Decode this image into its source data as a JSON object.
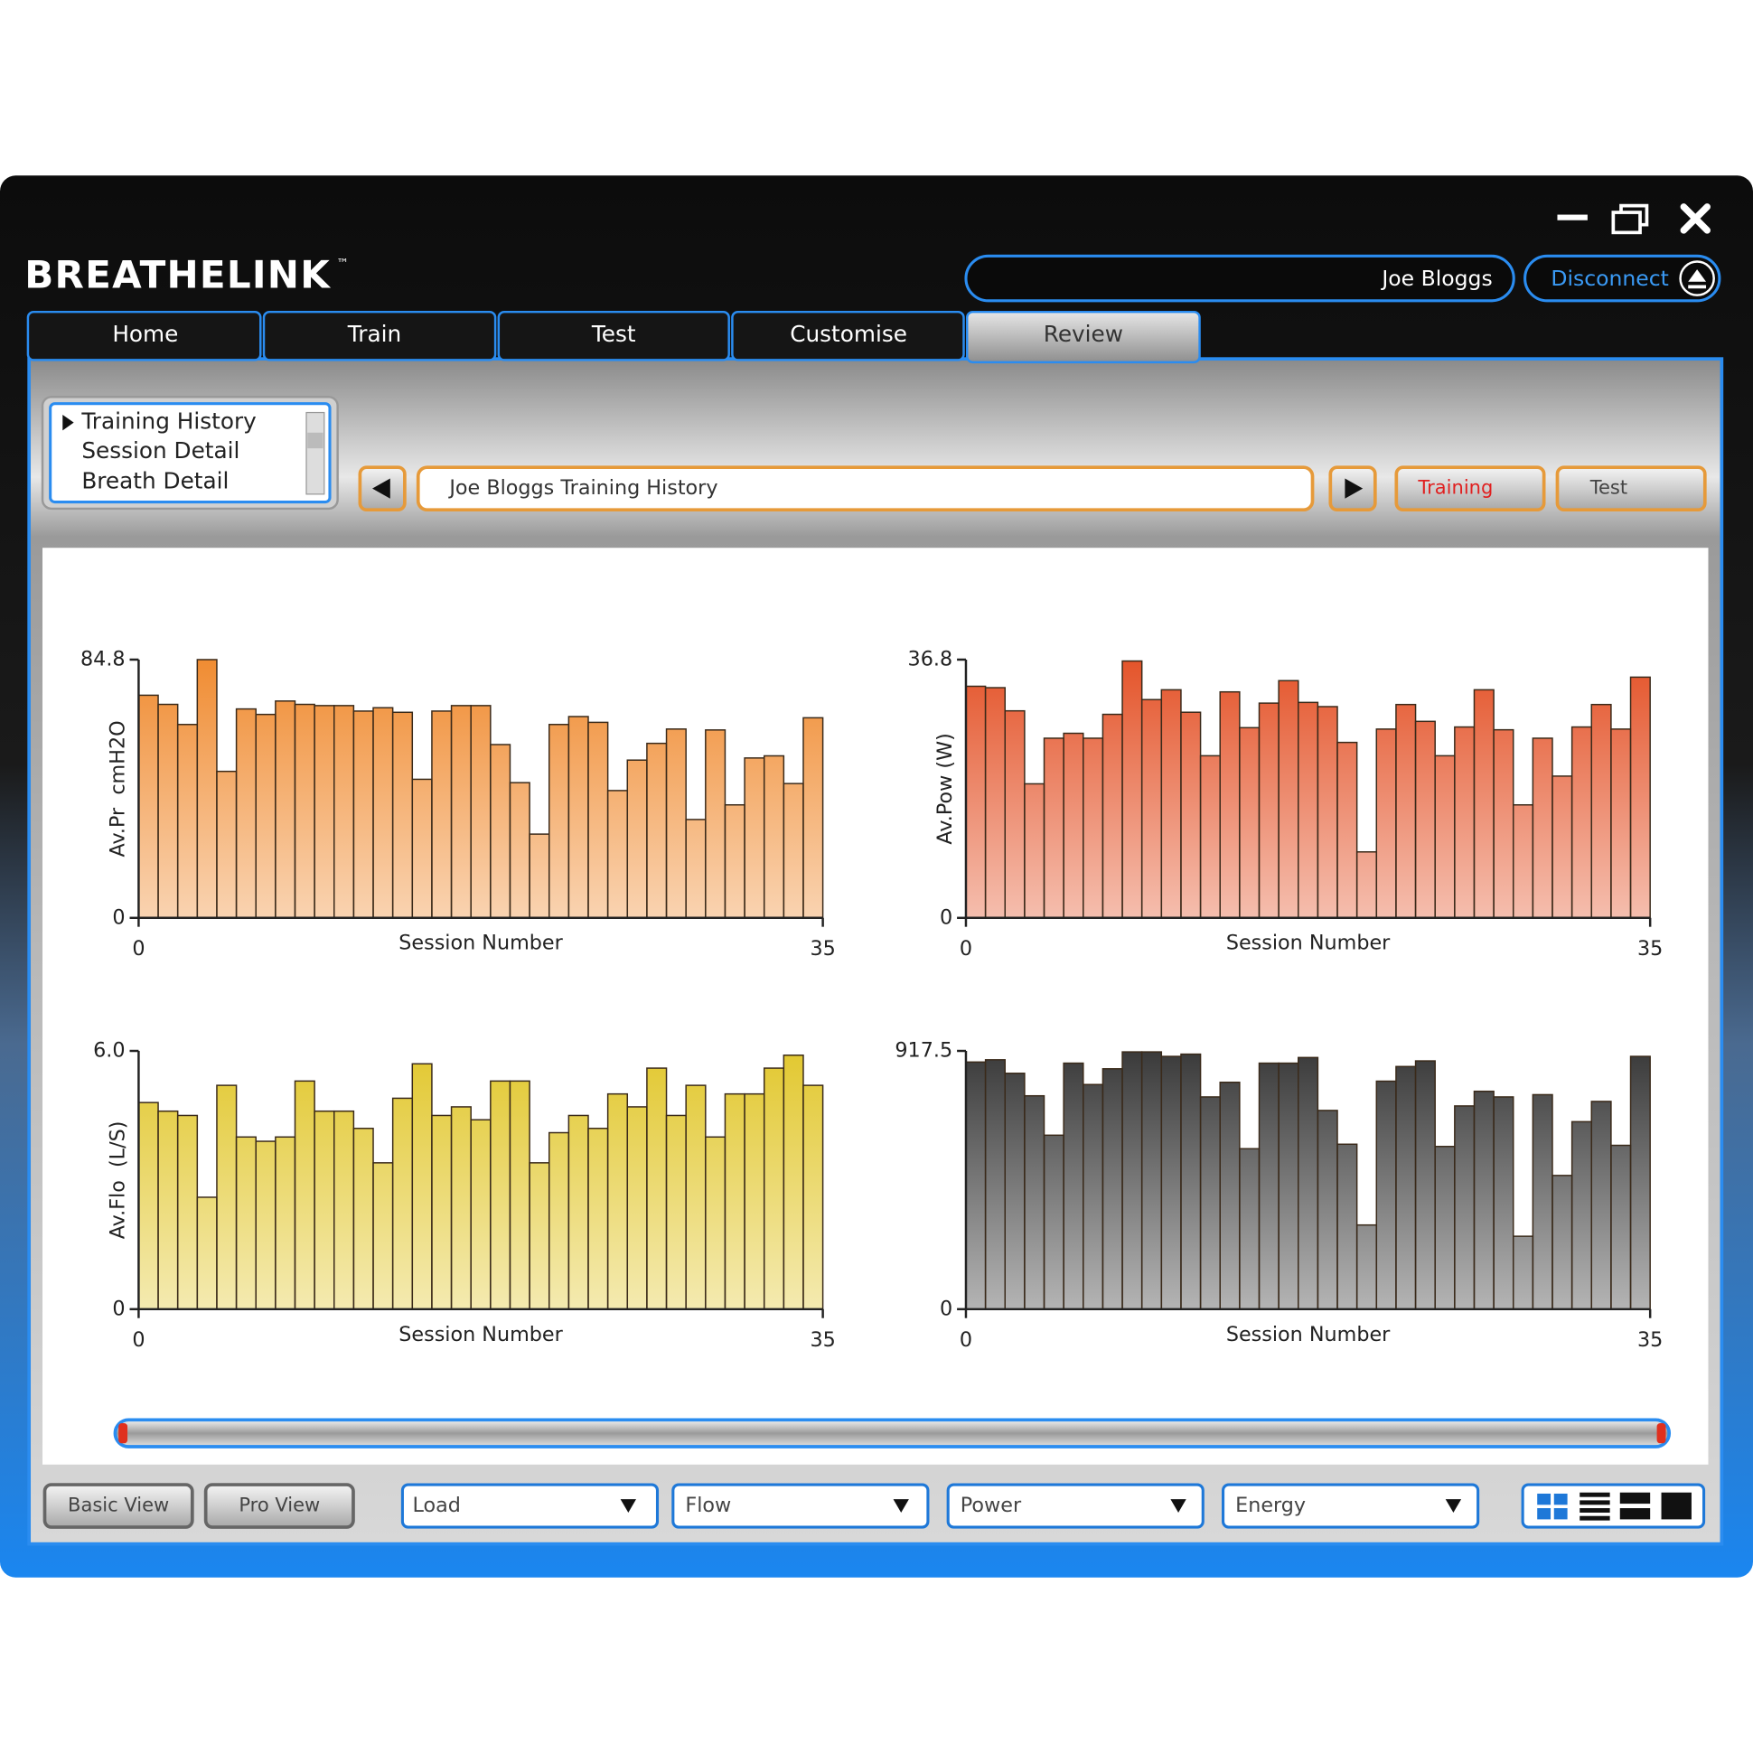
{
  "window": {
    "logo": "BREATHELINK",
    "trademark": "™",
    "user": "Joe Bloggs",
    "disconnect": "Disconnect"
  },
  "tabs": [
    "Home",
    "Train",
    "Test",
    "Customise",
    "Review"
  ],
  "views": [
    "Training History",
    "Session Detail",
    "Breath Detail"
  ],
  "history_title": "Joe Bloggs Training History",
  "mode_buttons": [
    "Training",
    "Test"
  ],
  "view_buttons": [
    "Basic View",
    "Pro View"
  ],
  "dropdowns": [
    "Load",
    "Flow",
    "Power",
    "Energy"
  ],
  "chart_data": [
    {
      "type": "bar",
      "x_label": "Session Number",
      "y_label": "Av.Pr  cmH2O",
      "color": "#f08c32",
      "x": [
        1,
        2,
        3,
        4,
        5,
        6,
        7,
        8,
        9,
        10,
        11,
        12,
        13,
        14,
        15,
        16,
        17,
        18,
        19,
        20,
        21,
        22,
        23,
        24,
        25,
        26,
        27,
        28,
        29,
        30,
        31,
        32,
        33,
        34,
        35
      ],
      "values": [
        73.1,
        70.1,
        63.5,
        84.8,
        48.1,
        68.6,
        66.8,
        71.2,
        70.1,
        69.7,
        69.7,
        67.9,
        69.0,
        67.5,
        45.5,
        67.9,
        69.7,
        69.7,
        56.9,
        44.4,
        27.5,
        63.5,
        66.1,
        64.2,
        41.8,
        51.8,
        57.3,
        62.0,
        32.3,
        61.7,
        37.1,
        52.5,
        53.2,
        44.1,
        65.7
      ],
      "xlim": [
        0,
        35
      ],
      "ylim": [
        0,
        84.8
      ],
      "xticks": [
        0,
        35
      ],
      "yticks": [
        0,
        84.8
      ]
    },
    {
      "type": "bar",
      "x_label": "Session Number",
      "y_label": "Av.Pow (W)",
      "color": "#e4542a",
      "x": [
        1,
        2,
        3,
        4,
        5,
        6,
        7,
        8,
        9,
        10,
        11,
        12,
        13,
        14,
        15,
        16,
        17,
        18,
        19,
        20,
        21,
        22,
        23,
        24,
        25,
        26,
        27,
        28,
        29,
        30,
        31,
        32,
        33,
        34,
        35
      ],
      "values": [
        33.0,
        32.8,
        29.5,
        19.1,
        25.6,
        26.3,
        25.6,
        29.0,
        36.6,
        31.1,
        32.5,
        29.3,
        23.1,
        32.2,
        27.1,
        30.6,
        33.8,
        30.7,
        30.1,
        25.0,
        9.4,
        26.9,
        30.4,
        28.0,
        23.1,
        27.2,
        32.5,
        26.8,
        16.1,
        25.6,
        20.2,
        27.2,
        30.4,
        26.9,
        34.3
      ],
      "xlim": [
        0,
        35
      ],
      "ylim": [
        0,
        36.8
      ],
      "xticks": [
        0,
        35
      ],
      "yticks": [
        0,
        36.8
      ]
    },
    {
      "type": "bar",
      "x_label": "Session Number",
      "y_label": "Av.Flo  (L/S)",
      "color": "#e2c830",
      "x": [
        1,
        2,
        3,
        4,
        5,
        6,
        7,
        8,
        9,
        10,
        11,
        12,
        13,
        14,
        15,
        16,
        17,
        18,
        19,
        20,
        21,
        22,
        23,
        24,
        25,
        26,
        27,
        28,
        29,
        30,
        31,
        32,
        33,
        34,
        35
      ],
      "values": [
        4.8,
        4.6,
        4.5,
        2.6,
        5.2,
        4.0,
        3.9,
        4.0,
        5.3,
        4.6,
        4.6,
        4.2,
        3.4,
        4.9,
        5.7,
        4.5,
        4.7,
        4.4,
        5.3,
        5.3,
        3.4,
        4.1,
        4.5,
        4.2,
        5.0,
        4.7,
        5.6,
        4.5,
        5.2,
        4.0,
        5.0,
        5.0,
        5.6,
        5.9,
        5.2
      ],
      "xlim": [
        0,
        35
      ],
      "ylim": [
        0,
        6
      ],
      "xticks": [
        0,
        35
      ],
      "yticks": [
        0,
        {
          "value": 6,
          "label": "6.0"
        }
      ]
    },
    {
      "type": "bar",
      "x_label": "Session Number",
      "color": "#3a3a3a",
      "x": [
        1,
        2,
        3,
        4,
        5,
        6,
        7,
        8,
        9,
        10,
        11,
        12,
        13,
        14,
        15,
        16,
        17,
        18,
        19,
        20,
        21,
        22,
        23,
        24,
        25,
        26,
        27,
        28,
        29,
        30,
        31,
        32,
        33,
        34,
        35
      ],
      "values": [
        878,
        886,
        838,
        758,
        618,
        874,
        798,
        854,
        914,
        914,
        898,
        906,
        754,
        806,
        570,
        874,
        874,
        894,
        706,
        586,
        299,
        810,
        862,
        882,
        578,
        722,
        774,
        754,
        259,
        762,
        475,
        666,
        738,
        582,
        898
      ],
      "xlim": [
        0,
        35
      ],
      "ylim": [
        0,
        917.5
      ],
      "xticks": [
        0,
        35
      ],
      "yticks": [
        0,
        917.5
      ]
    }
  ]
}
